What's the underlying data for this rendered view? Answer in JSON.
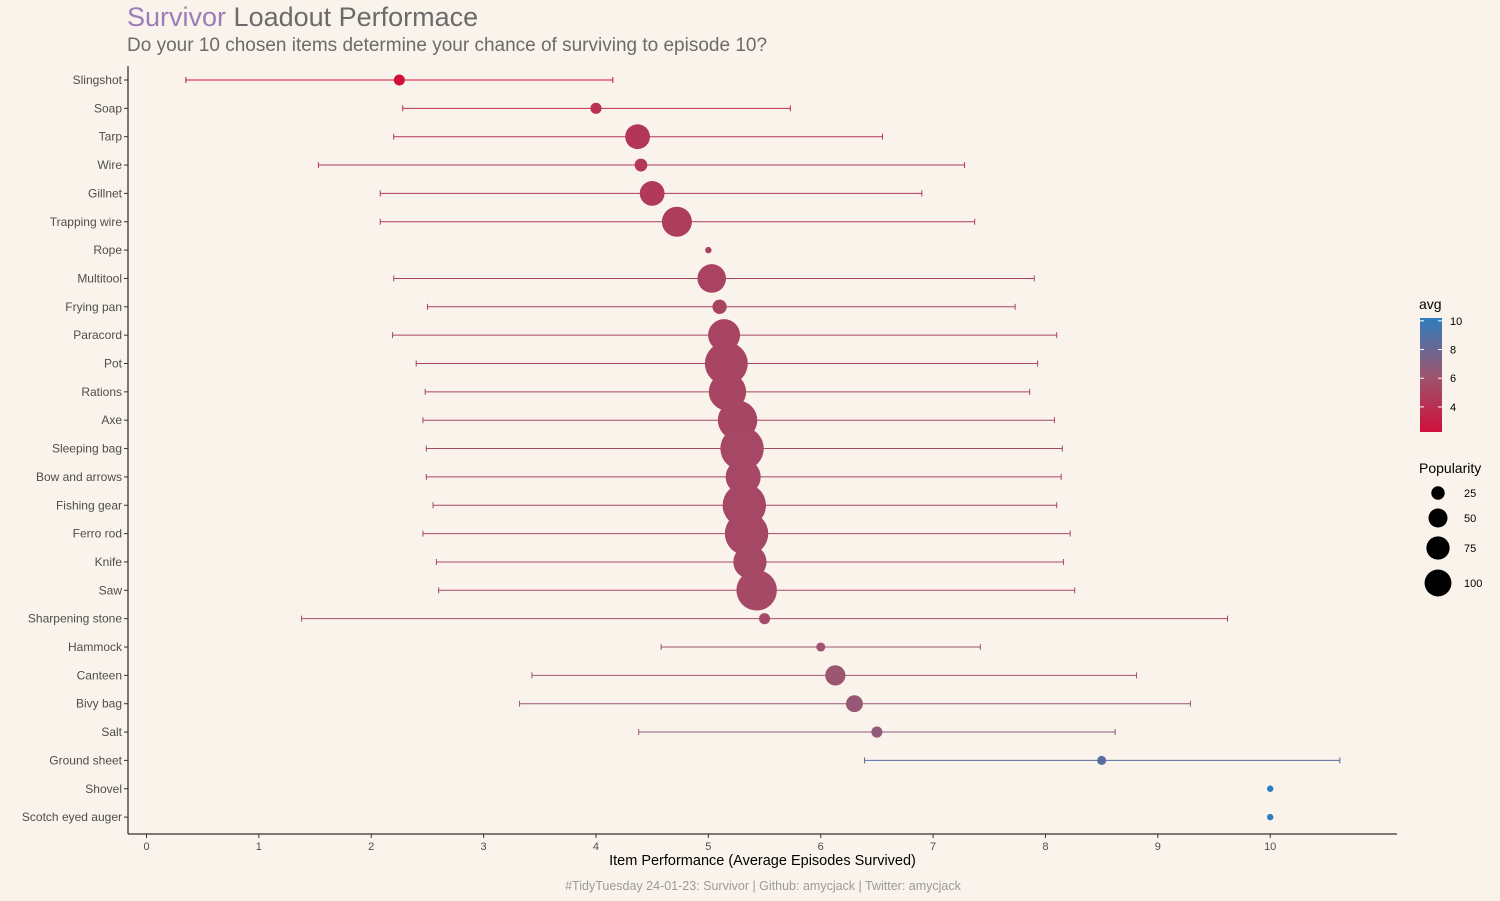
{
  "header": {
    "title_accent": "Survivor",
    "title_rest": "Loadout Performace",
    "subtitle": "Do your 10 chosen items determine your chance of surviving to episode 10?"
  },
  "caption": "#TidyTuesday 24-01-23: Survivor | Github: amycjack | Twitter: amycjack",
  "chart_data": {
    "type": "scatter",
    "xlabel": "Item Performance (Average Episodes Survived)",
    "xlim": [
      -0.15,
      11.15
    ],
    "xticks": [
      0,
      1,
      2,
      3,
      4,
      5,
      6,
      7,
      8,
      9,
      10
    ],
    "grid": false,
    "colors": {
      "low": "#d0103a",
      "mid": "#9b5670",
      "high": "#2e7dbe"
    },
    "color_scale": {
      "min": 2.25,
      "max": 10
    },
    "items": [
      {
        "name": "Slingshot",
        "avg": 2.25,
        "low": 0.35,
        "high": 4.15,
        "popularity": 3
      },
      {
        "name": "Soap",
        "avg": 4.0,
        "low": 2.28,
        "high": 5.73,
        "popularity": 3
      },
      {
        "name": "Tarp",
        "avg": 4.37,
        "low": 2.2,
        "high": 6.55,
        "popularity": 15
      },
      {
        "name": "Wire",
        "avg": 4.4,
        "low": 1.53,
        "high": 7.28,
        "popularity": 4
      },
      {
        "name": "Gillnet",
        "avg": 4.5,
        "low": 2.08,
        "high": 6.9,
        "popularity": 15
      },
      {
        "name": "Trapping wire",
        "avg": 4.72,
        "low": 2.08,
        "high": 7.37,
        "popularity": 22
      },
      {
        "name": "Rope",
        "avg": 5.0,
        "low": 5.0,
        "high": 5.0,
        "popularity": 1
      },
      {
        "name": "Multitool",
        "avg": 5.03,
        "low": 2.2,
        "high": 7.9,
        "popularity": 20
      },
      {
        "name": "Frying pan",
        "avg": 5.1,
        "low": 2.5,
        "high": 7.73,
        "popularity": 5
      },
      {
        "name": "Paracord",
        "avg": 5.14,
        "low": 2.19,
        "high": 8.1,
        "popularity": 25
      },
      {
        "name": "Pot",
        "avg": 5.16,
        "low": 2.4,
        "high": 7.93,
        "popularity": 45
      },
      {
        "name": "Rations",
        "avg": 5.17,
        "low": 2.48,
        "high": 7.86,
        "popularity": 34
      },
      {
        "name": "Axe",
        "avg": 5.26,
        "low": 2.46,
        "high": 8.08,
        "popularity": 38
      },
      {
        "name": "Sleeping bag",
        "avg": 5.3,
        "low": 2.49,
        "high": 8.15,
        "popularity": 46
      },
      {
        "name": "Bow and arrows",
        "avg": 5.31,
        "low": 2.49,
        "high": 8.14,
        "popularity": 30
      },
      {
        "name": "Fishing gear",
        "avg": 5.32,
        "low": 2.55,
        "high": 8.1,
        "popularity": 46
      },
      {
        "name": "Ferro rod",
        "avg": 5.34,
        "low": 2.46,
        "high": 8.22,
        "popularity": 46
      },
      {
        "name": "Knife",
        "avg": 5.37,
        "low": 2.58,
        "high": 8.16,
        "popularity": 27
      },
      {
        "name": "Saw",
        "avg": 5.43,
        "low": 2.6,
        "high": 8.26,
        "popularity": 40
      },
      {
        "name": "Sharpening stone",
        "avg": 5.5,
        "low": 1.38,
        "high": 9.62,
        "popularity": 3
      },
      {
        "name": "Hammock",
        "avg": 6.0,
        "low": 4.58,
        "high": 7.42,
        "popularity": 2
      },
      {
        "name": "Canteen",
        "avg": 6.13,
        "low": 3.43,
        "high": 8.81,
        "popularity": 10
      },
      {
        "name": "Bivy bag",
        "avg": 6.3,
        "low": 3.32,
        "high": 9.29,
        "popularity": 7
      },
      {
        "name": "Salt",
        "avg": 6.5,
        "low": 4.38,
        "high": 8.62,
        "popularity": 3
      },
      {
        "name": "Ground sheet",
        "avg": 8.5,
        "low": 6.39,
        "high": 10.62,
        "popularity": 2
      },
      {
        "name": "Shovel",
        "avg": 10.0,
        "low": 10.0,
        "high": 10.0,
        "popularity": 1
      },
      {
        "name": "Scotch eyed auger",
        "avg": 10.0,
        "low": 10.0,
        "high": 10.0,
        "popularity": 1
      }
    ],
    "legend_color": {
      "title": "avg",
      "ticks": [
        "4",
        "6",
        "8",
        "10"
      ],
      "tick_values": [
        4,
        6,
        8,
        10
      ]
    },
    "legend_size": {
      "title": "Popularity",
      "entries": [
        "25",
        "50",
        "75",
        "100"
      ],
      "entry_values": [
        25,
        50,
        75,
        100
      ]
    }
  }
}
